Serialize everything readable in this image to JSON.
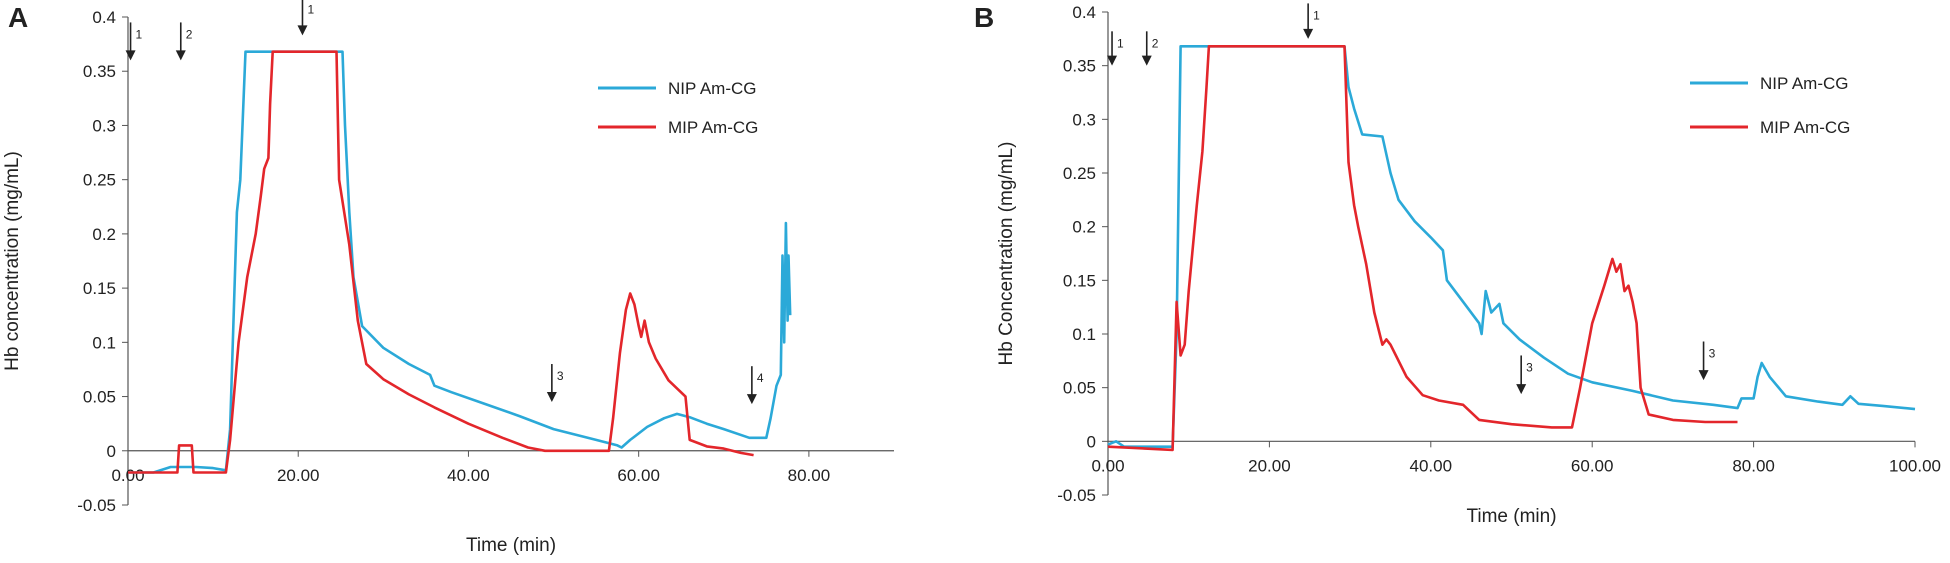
{
  "chart_data": [
    {
      "panel": "A",
      "type": "line",
      "xlabel": "Time (min)",
      "ylabel": "Hb concentration (mg/mL)",
      "xlim": [
        0,
        90
      ],
      "ylim": [
        -0.05,
        0.4
      ],
      "xticks": [
        0,
        20,
        40,
        60,
        80
      ],
      "xtick_labels": [
        "0.00",
        "20.00",
        "40.00",
        "60.00",
        "80.00"
      ],
      "yticks": [
        -0.05,
        0,
        0.05,
        0.1,
        0.15,
        0.2,
        0.25,
        0.3,
        0.35,
        0.4
      ],
      "ytick_labels": [
        "-0.05",
        "0",
        "0.05",
        "0.1",
        "0.15",
        "0.2",
        "0.25",
        "0.3",
        "0.35",
        "0.4"
      ],
      "legend_position": "top-right",
      "series": [
        {
          "name": "NIP Am-CG",
          "color": "#2ba9d8",
          "points": [
            [
              0,
              -0.02
            ],
            [
              3,
              -0.02
            ],
            [
              5,
              -0.015
            ],
            [
              8,
              -0.015
            ],
            [
              10,
              -0.016
            ],
            [
              11.5,
              -0.018
            ],
            [
              12,
              0.02
            ],
            [
              12.8,
              0.22
            ],
            [
              13.2,
              0.25
            ],
            [
              13.8,
              0.368
            ],
            [
              15,
              0.368
            ],
            [
              20,
              0.368
            ],
            [
              25.2,
              0.368
            ],
            [
              25.5,
              0.3
            ],
            [
              26,
              0.22
            ],
            [
              26.5,
              0.16
            ],
            [
              27.5,
              0.115
            ],
            [
              30,
              0.095
            ],
            [
              33,
              0.08
            ],
            [
              35.5,
              0.07
            ],
            [
              36,
              0.06
            ],
            [
              38,
              0.054
            ],
            [
              42,
              0.043
            ],
            [
              46,
              0.032
            ],
            [
              50,
              0.02
            ],
            [
              55,
              0.01
            ],
            [
              57.5,
              0.005
            ],
            [
              58,
              0.003
            ],
            [
              59,
              0.01
            ],
            [
              61,
              0.022
            ],
            [
              63,
              0.03
            ],
            [
              64.5,
              0.034
            ],
            [
              66,
              0.031
            ],
            [
              68,
              0.025
            ],
            [
              70,
              0.02
            ],
            [
              73,
              0.012
            ],
            [
              75,
              0.012
            ],
            [
              75.5,
              0.03
            ],
            [
              76.2,
              0.06
            ],
            [
              76.7,
              0.07
            ],
            [
              76.9,
              0.18
            ],
            [
              77.1,
              0.1
            ],
            [
              77.3,
              0.21
            ],
            [
              77.5,
              0.12
            ],
            [
              77.6,
              0.18
            ],
            [
              77.8,
              0.125
            ]
          ]
        },
        {
          "name": "MIP Am-CG",
          "color": "#e3262b",
          "points": [
            [
              0,
              -0.02
            ],
            [
              5.8,
              -0.02
            ],
            [
              6,
              0.005
            ],
            [
              7.5,
              0.005
            ],
            [
              7.7,
              -0.02
            ],
            [
              11.5,
              -0.02
            ],
            [
              12,
              0.01
            ],
            [
              13,
              0.1
            ],
            [
              14,
              0.16
            ],
            [
              15,
              0.2
            ],
            [
              15.6,
              0.235
            ],
            [
              16,
              0.26
            ],
            [
              16.5,
              0.27
            ],
            [
              16.7,
              0.32
            ],
            [
              17,
              0.368
            ],
            [
              20,
              0.368
            ],
            [
              24.5,
              0.368
            ],
            [
              24.8,
              0.25
            ],
            [
              26,
              0.19
            ],
            [
              27,
              0.12
            ],
            [
              28,
              0.08
            ],
            [
              30,
              0.066
            ],
            [
              33,
              0.052
            ],
            [
              36,
              0.04
            ],
            [
              40,
              0.025
            ],
            [
              44,
              0.012
            ],
            [
              47,
              0.003
            ],
            [
              49,
              0
            ],
            [
              56.5,
              0
            ],
            [
              57,
              0.03
            ],
            [
              57.8,
              0.09
            ],
            [
              58.5,
              0.13
            ],
            [
              59,
              0.145
            ],
            [
              59.5,
              0.135
            ],
            [
              60,
              0.115
            ],
            [
              60.3,
              0.105
            ],
            [
              60.7,
              0.12
            ],
            [
              61.2,
              0.1
            ],
            [
              62,
              0.085
            ],
            [
              63.5,
              0.065
            ],
            [
              65.5,
              0.05
            ],
            [
              66,
              0.01
            ],
            [
              68,
              0.004
            ],
            [
              70,
              0.002
            ],
            [
              72,
              -0.002
            ],
            [
              73.5,
              -0.004
            ]
          ]
        }
      ],
      "arrows": [
        {
          "label": "1",
          "x": 0.3,
          "top": 0.395,
          "tip": 0.36
        },
        {
          "label": "2",
          "x": 6.2,
          "top": 0.395,
          "tip": 0.36
        },
        {
          "label": "1",
          "x": 20.5,
          "top": 0.418,
          "tip": 0.383
        },
        {
          "label": "3",
          "x": 49.8,
          "top": 0.08,
          "tip": 0.045
        },
        {
          "label": "4",
          "x": 73.3,
          "top": 0.078,
          "tip": 0.043
        }
      ]
    },
    {
      "panel": "B",
      "type": "line",
      "xlabel": "Time (min)",
      "ylabel": "Hb Concentration (mg/mL)",
      "xlim": [
        0,
        100
      ],
      "ylim": [
        -0.05,
        0.4
      ],
      "xticks": [
        0,
        20,
        40,
        60,
        80,
        100
      ],
      "xtick_labels": [
        "0.00",
        "20.00",
        "40.00",
        "60.00",
        "80.00",
        "100.00"
      ],
      "yticks": [
        -0.05,
        0,
        0.05,
        0.1,
        0.15,
        0.2,
        0.25,
        0.3,
        0.35,
        0.4
      ],
      "ytick_labels": [
        "-0.05",
        "0",
        "0.05",
        "0.1",
        "0.15",
        "0.2",
        "0.25",
        "0.3",
        "0.35",
        "0.4"
      ],
      "legend_position": "top-right",
      "series": [
        {
          "name": "NIP Am-CG",
          "color": "#2ba9d8",
          "points": [
            [
              0,
              -0.003
            ],
            [
              1,
              0
            ],
            [
              2,
              -0.005
            ],
            [
              8,
              -0.005
            ],
            [
              8.5,
              0.1
            ],
            [
              9,
              0.368
            ],
            [
              15,
              0.368
            ],
            [
              29.3,
              0.368
            ],
            [
              29.8,
              0.33
            ],
            [
              30.5,
              0.31
            ],
            [
              31.5,
              0.286
            ],
            [
              34,
              0.284
            ],
            [
              35,
              0.25
            ],
            [
              36,
              0.225
            ],
            [
              38,
              0.205
            ],
            [
              40,
              0.19
            ],
            [
              41.5,
              0.178
            ],
            [
              42,
              0.15
            ],
            [
              44,
              0.13
            ],
            [
              46,
              0.11
            ],
            [
              46.3,
              0.1
            ],
            [
              46.8,
              0.14
            ],
            [
              47.5,
              0.12
            ],
            [
              48.5,
              0.128
            ],
            [
              49,
              0.11
            ],
            [
              51,
              0.095
            ],
            [
              54,
              0.078
            ],
            [
              57,
              0.063
            ],
            [
              60,
              0.055
            ],
            [
              65,
              0.047
            ],
            [
              70,
              0.038
            ],
            [
              75,
              0.034
            ],
            [
              78,
              0.031
            ],
            [
              78.5,
              0.04
            ],
            [
              80,
              0.04
            ],
            [
              80.5,
              0.06
            ],
            [
              81,
              0.073
            ],
            [
              82,
              0.06
            ],
            [
              84,
              0.042
            ],
            [
              88,
              0.037
            ],
            [
              91,
              0.034
            ],
            [
              92,
              0.042
            ],
            [
              93,
              0.035
            ],
            [
              96,
              0.033
            ],
            [
              100,
              0.03
            ]
          ]
        },
        {
          "name": "MIP Am-CG",
          "color": "#e3262b",
          "points": [
            [
              0,
              -0.005
            ],
            [
              8,
              -0.008
            ],
            [
              8.5,
              0.13
            ],
            [
              9,
              0.08
            ],
            [
              9.5,
              0.09
            ],
            [
              10,
              0.14
            ],
            [
              11,
              0.22
            ],
            [
              11.7,
              0.27
            ],
            [
              12.2,
              0.33
            ],
            [
              12.5,
              0.368
            ],
            [
              20,
              0.368
            ],
            [
              29.3,
              0.368
            ],
            [
              29.8,
              0.26
            ],
            [
              30.5,
              0.22
            ],
            [
              31,
              0.2
            ],
            [
              32,
              0.165
            ],
            [
              33,
              0.12
            ],
            [
              34,
              0.09
            ],
            [
              34.5,
              0.095
            ],
            [
              35,
              0.09
            ],
            [
              37,
              0.06
            ],
            [
              39,
              0.043
            ],
            [
              41,
              0.038
            ],
            [
              44,
              0.034
            ],
            [
              46,
              0.02
            ],
            [
              50,
              0.016
            ],
            [
              55,
              0.013
            ],
            [
              57.5,
              0.013
            ],
            [
              58.5,
              0.05
            ],
            [
              60,
              0.11
            ],
            [
              61.5,
              0.145
            ],
            [
              62.5,
              0.17
            ],
            [
              63,
              0.158
            ],
            [
              63.5,
              0.165
            ],
            [
              64,
              0.14
            ],
            [
              64.5,
              0.145
            ],
            [
              65,
              0.13
            ],
            [
              65.5,
              0.11
            ],
            [
              66,
              0.05
            ],
            [
              67,
              0.025
            ],
            [
              70,
              0.02
            ],
            [
              74,
              0.018
            ],
            [
              78,
              0.018
            ]
          ]
        }
      ],
      "arrows": [
        {
          "label": "1",
          "x": 0.5,
          "top": 0.382,
          "tip": 0.35
        },
        {
          "label": "2",
          "x": 4.8,
          "top": 0.382,
          "tip": 0.35
        },
        {
          "label": "1",
          "x": 24.8,
          "top": 0.408,
          "tip": 0.375
        },
        {
          "label": "3",
          "x": 51.2,
          "top": 0.08,
          "tip": 0.044
        },
        {
          "label": "3",
          "x": 73.8,
          "top": 0.093,
          "tip": 0.057
        }
      ]
    }
  ]
}
